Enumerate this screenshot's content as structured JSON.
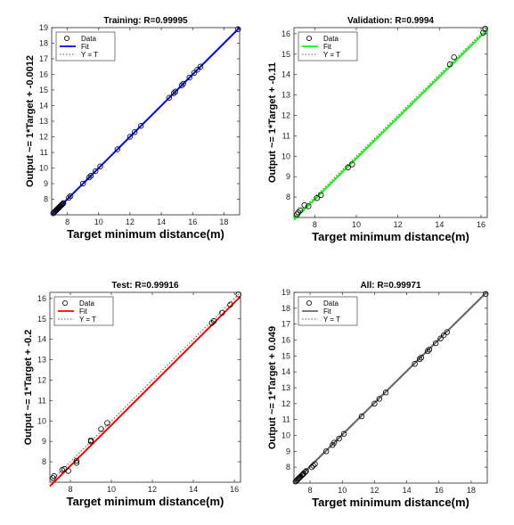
{
  "chart_data": [
    {
      "type": "scatter",
      "title": "Training: R=0.99995",
      "xlabel": "Target minimum distance(m)",
      "ylabel": "Output ~= 1*Target + -0.0012",
      "xlim": [
        7,
        19
      ],
      "ylim": [
        7,
        19
      ],
      "xticks": [
        8,
        10,
        12,
        14,
        16,
        18
      ],
      "yticks": [
        8,
        9,
        10,
        11,
        12,
        13,
        14,
        15,
        16,
        17,
        18,
        19
      ],
      "fit_color": "#0000ff",
      "fit": {
        "slope": 1,
        "intercept": -0.0012
      },
      "legend": [
        "Data",
        "Fit",
        "Y = T"
      ],
      "legend_position": "top-left",
      "series": [
        {
          "type": "data",
          "points": [
            [
              7.1,
              7.1
            ],
            [
              7.2,
              7.2
            ],
            [
              7.25,
              7.25
            ],
            [
              7.3,
              7.3
            ],
            [
              7.35,
              7.35
            ],
            [
              7.4,
              7.4
            ],
            [
              7.45,
              7.45
            ],
            [
              7.5,
              7.5
            ],
            [
              7.55,
              7.55
            ],
            [
              7.6,
              7.6
            ],
            [
              7.65,
              7.65
            ],
            [
              7.7,
              7.7
            ],
            [
              7.75,
              7.75
            ],
            [
              8.1,
              8.1
            ],
            [
              8.2,
              8.2
            ],
            [
              9.0,
              9.0
            ],
            [
              9.4,
              9.4
            ],
            [
              9.5,
              9.5
            ],
            [
              9.8,
              9.8
            ],
            [
              10.1,
              10.1
            ],
            [
              11.2,
              11.2
            ],
            [
              12.0,
              12.0
            ],
            [
              12.3,
              12.3
            ],
            [
              12.7,
              12.7
            ],
            [
              14.5,
              14.5
            ],
            [
              14.8,
              14.8
            ],
            [
              14.9,
              14.9
            ],
            [
              15.3,
              15.3
            ],
            [
              15.4,
              15.4
            ],
            [
              15.8,
              15.8
            ],
            [
              16.1,
              16.1
            ],
            [
              16.3,
              16.3
            ],
            [
              16.5,
              16.5
            ],
            [
              18.9,
              18.9
            ]
          ]
        }
      ]
    },
    {
      "type": "scatter",
      "title": "Validation: R=0.9994",
      "xlabel": "Target minimum distance(m)",
      "ylabel": "Output ~= 1*Target + -0.11",
      "xlim": [
        7,
        16.3
      ],
      "ylim": [
        7,
        16.3
      ],
      "xticks": [
        8,
        10,
        12,
        14,
        16
      ],
      "yticks": [
        8,
        9,
        10,
        11,
        12,
        13,
        14,
        15,
        16
      ],
      "fit_color": "#00ff00",
      "fit": {
        "slope": 1,
        "intercept": -0.11
      },
      "legend": [
        "Data",
        "Fit",
        "Y = T"
      ],
      "legend_position": "top-left",
      "series": [
        {
          "type": "data",
          "points": [
            [
              7.15,
              7.15
            ],
            [
              7.2,
              7.25
            ],
            [
              7.3,
              7.35
            ],
            [
              7.5,
              7.6
            ],
            [
              7.7,
              7.55
            ],
            [
              8.1,
              7.95
            ],
            [
              8.3,
              8.1
            ],
            [
              9.6,
              9.45
            ],
            [
              9.8,
              9.6
            ],
            [
              14.5,
              14.5
            ],
            [
              14.7,
              14.85
            ],
            [
              16.1,
              16.05
            ],
            [
              16.2,
              16.25
            ]
          ]
        }
      ]
    },
    {
      "type": "scatter",
      "title": "Test: R=0.99916",
      "xlabel": "Target minimum distance(m)",
      "ylabel": "Output ~= 1*Target + -0.2",
      "xlim": [
        7,
        16.3
      ],
      "ylim": [
        7,
        16.3
      ],
      "xticks": [
        8,
        10,
        12,
        14,
        16
      ],
      "yticks": [
        8,
        9,
        10,
        11,
        12,
        13,
        14,
        15,
        16
      ],
      "fit_color": "#ff0000",
      "fit": {
        "slope": 1,
        "intercept": -0.2
      },
      "legend": [
        "Data",
        "Fit",
        "Y = T"
      ],
      "legend_position": "top-left",
      "series": [
        {
          "type": "data",
          "points": [
            [
              7.15,
              7.2
            ],
            [
              7.2,
              7.3
            ],
            [
              7.6,
              7.6
            ],
            [
              7.7,
              7.65
            ],
            [
              7.9,
              7.55
            ],
            [
              8.3,
              7.95
            ],
            [
              8.3,
              8.05
            ],
            [
              9.0,
              9.0
            ],
            [
              9.0,
              9.05
            ],
            [
              9.5,
              9.6
            ],
            [
              9.8,
              9.9
            ],
            [
              14.9,
              14.8
            ],
            [
              15.0,
              14.9
            ],
            [
              15.4,
              15.3
            ],
            [
              15.8,
              15.7
            ],
            [
              16.2,
              16.2
            ]
          ]
        }
      ]
    },
    {
      "type": "scatter",
      "title": "All: R=0.99971",
      "xlabel": "Target minimum distance(m)",
      "ylabel": "Output ~= 1*Target + 0.049",
      "xlim": [
        7,
        19
      ],
      "ylim": [
        7,
        19
      ],
      "xticks": [
        8,
        10,
        12,
        14,
        16,
        18
      ],
      "yticks": [
        8,
        9,
        10,
        11,
        12,
        13,
        14,
        15,
        16,
        17,
        18,
        19
      ],
      "fit_color": "#666666",
      "fit": {
        "slope": 1,
        "intercept": 0.049
      },
      "legend": [
        "Data",
        "Fit",
        "Y = T"
      ],
      "legend_position": "top-left",
      "series": [
        {
          "type": "data",
          "points": [
            [
              7.1,
              7.1
            ],
            [
              7.2,
              7.2
            ],
            [
              7.25,
              7.25
            ],
            [
              7.3,
              7.3
            ],
            [
              7.35,
              7.35
            ],
            [
              7.4,
              7.4
            ],
            [
              7.5,
              7.5
            ],
            [
              7.55,
              7.55
            ],
            [
              7.6,
              7.6
            ],
            [
              7.7,
              7.7
            ],
            [
              7.75,
              7.75
            ],
            [
              8.1,
              8.0
            ],
            [
              8.2,
              8.1
            ],
            [
              8.3,
              8.2
            ],
            [
              9.0,
              9.0
            ],
            [
              9.4,
              9.4
            ],
            [
              9.5,
              9.55
            ],
            [
              9.8,
              9.8
            ],
            [
              10.1,
              10.1
            ],
            [
              11.2,
              11.2
            ],
            [
              12.0,
              12.0
            ],
            [
              12.3,
              12.3
            ],
            [
              12.7,
              12.7
            ],
            [
              14.5,
              14.5
            ],
            [
              14.8,
              14.8
            ],
            [
              14.9,
              14.9
            ],
            [
              15.3,
              15.3
            ],
            [
              15.4,
              15.4
            ],
            [
              15.8,
              15.8
            ],
            [
              16.1,
              16.1
            ],
            [
              16.3,
              16.3
            ],
            [
              16.5,
              16.5
            ],
            [
              18.9,
              18.9
            ]
          ]
        }
      ]
    }
  ]
}
